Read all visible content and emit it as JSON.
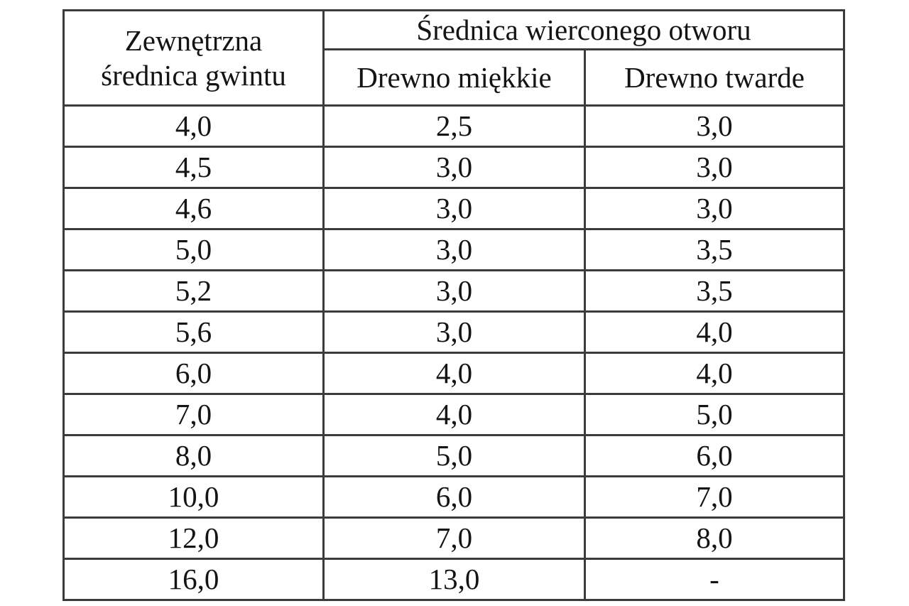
{
  "colors": {
    "background": "#ffffff",
    "border": "#3b3b3b",
    "text": "#141414"
  },
  "table": {
    "header": {
      "thread_col_line1": "Zewnętrzna",
      "thread_col_line2": "średnica gwintu",
      "group_title": "Średnica wierconego otworu",
      "soft_wood": "Drewno miękkie",
      "hard_wood": "Drewno twarde"
    },
    "rows": [
      {
        "thread": "4,0",
        "soft": "2,5",
        "hard": "3,0"
      },
      {
        "thread": "4,5",
        "soft": "3,0",
        "hard": "3,0"
      },
      {
        "thread": "4,6",
        "soft": "3,0",
        "hard": "3,0"
      },
      {
        "thread": "5,0",
        "soft": "3,0",
        "hard": "3,5"
      },
      {
        "thread": "5,2",
        "soft": "3,0",
        "hard": "3,5"
      },
      {
        "thread": "5,6",
        "soft": "3,0",
        "hard": "4,0"
      },
      {
        "thread": "6,0",
        "soft": "4,0",
        "hard": "4,0"
      },
      {
        "thread": "7,0",
        "soft": "4,0",
        "hard": "5,0"
      },
      {
        "thread": "8,0",
        "soft": "5,0",
        "hard": "6,0"
      },
      {
        "thread": "10,0",
        "soft": "6,0",
        "hard": "7,0"
      },
      {
        "thread": "12,0",
        "soft": "7,0",
        "hard": "8,0"
      },
      {
        "thread": "16,0",
        "soft": "13,0",
        "hard": "-"
      }
    ]
  }
}
